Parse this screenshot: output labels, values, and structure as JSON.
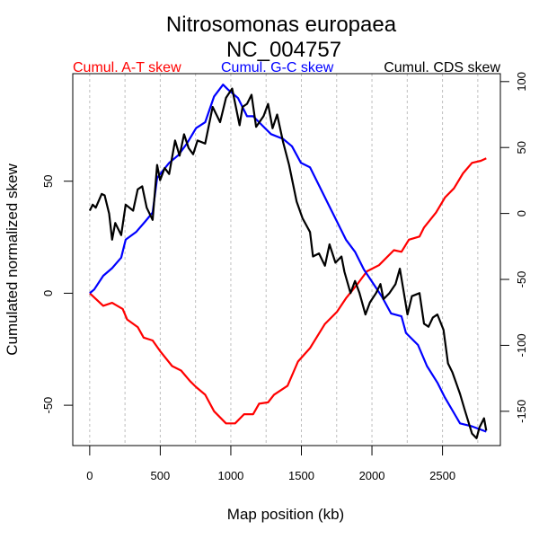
{
  "chart_data": {
    "type": "line",
    "title": "Nitrosomonas europaea",
    "subtitle": "NC_004757",
    "xlabel": "Map position (kb)",
    "ylabel": "Cumulated normalized skew",
    "xlim": [
      -120,
      2910
    ],
    "ylim": [
      -68,
      98
    ],
    "ylim_right": [
      -176,
      106
    ],
    "x_ticks": [
      0,
      500,
      1000,
      1500,
      2000,
      2500
    ],
    "x_tick_labels": [
      "0",
      "500",
      "1000",
      "1500",
      "2000",
      "2500"
    ],
    "y_ticks": [
      -50,
      0,
      50
    ],
    "y_tick_labels": [
      "-50",
      "0",
      "50"
    ],
    "y_right_ticks": [
      -150,
      -100,
      -50,
      0,
      50,
      100
    ],
    "y_right_tick_labels": [
      "-150",
      "-100",
      "-50",
      "0",
      "50",
      "100"
    ],
    "grid": "vertical dashed every 250 kb",
    "gridlines_x": [
      0,
      250,
      500,
      750,
      1000,
      1250,
      1500,
      1750,
      2000,
      2250,
      2500,
      2750
    ],
    "legend_position": "top",
    "series": [
      {
        "name": "Cumul. A-T skew",
        "color": "#ff0000",
        "axis": "left",
        "x": [
          0,
          96,
          159,
          234,
          265,
          340,
          382,
          446,
          499,
          584,
          648,
          711,
          754,
          818,
          881,
          966,
          1030,
          1094,
          1158,
          1200,
          1264,
          1306,
          1402,
          1476,
          1561,
          1667,
          1752,
          1816,
          1901,
          1965,
          2050,
          2156,
          2209,
          2262,
          2337,
          2369,
          2454,
          2517,
          2581,
          2645,
          2709,
          2772,
          2810
        ],
        "y": [
          0,
          -5.6,
          -4.3,
          -7.0,
          -11.7,
          -15.1,
          -19.8,
          -21.1,
          -25.8,
          -32.5,
          -34.5,
          -39.2,
          -41.9,
          -45.3,
          -52.7,
          -58.1,
          -58.1,
          -54.0,
          -54.0,
          -49.3,
          -48.7,
          -45.3,
          -41.3,
          -30.5,
          -24.5,
          -13.7,
          -8.3,
          -2.3,
          4.4,
          9.8,
          12.5,
          19.2,
          18.5,
          23.9,
          25.3,
          29.3,
          36.0,
          42.7,
          46.8,
          53.5,
          58.2,
          59.1,
          60.2
        ]
      },
      {
        "name": "Cumul. G-C skew",
        "color": "#0000ff",
        "axis": "left",
        "x": [
          0,
          32,
          96,
          159,
          223,
          255,
          329,
          393,
          446,
          478,
          563,
          627,
          690,
          754,
          818,
          881,
          945,
          977,
          1051,
          1115,
          1158,
          1221,
          1285,
          1370,
          1433,
          1497,
          1561,
          1625,
          1688,
          1752,
          1816,
          1880,
          1944,
          2008,
          2071,
          2135,
          2209,
          2241,
          2326,
          2390,
          2464,
          2517,
          2624,
          2709,
          2810
        ],
        "y": [
          0,
          1.7,
          7.8,
          11.2,
          15.9,
          23.9,
          27.3,
          32.0,
          36.0,
          51.5,
          58.2,
          61.6,
          66.9,
          73.7,
          76.3,
          87.8,
          93.1,
          91.1,
          87.1,
          79.0,
          79.0,
          75.0,
          71.0,
          68.9,
          65.6,
          58.2,
          56.2,
          48.1,
          40.1,
          32.0,
          23.9,
          18.5,
          10.5,
          4.4,
          -1.6,
          -9.0,
          -10.3,
          -17.7,
          -23.1,
          -32.5,
          -39.9,
          -46.6,
          -58.1,
          -59.4,
          -61.8
        ]
      },
      {
        "name": "Cumul. CDS skew",
        "color": "#000000",
        "axis": "right",
        "x": [
          0,
          21,
          43,
          85,
          106,
          138,
          159,
          181,
          223,
          255,
          308,
          340,
          372,
          404,
          446,
          478,
          499,
          531,
          563,
          605,
          637,
          669,
          701,
          733,
          764,
          818,
          871,
          924,
          966,
          1009,
          1062,
          1083,
          1115,
          1147,
          1179,
          1232,
          1264,
          1296,
          1328,
          1370,
          1413,
          1466,
          1508,
          1561,
          1582,
          1625,
          1667,
          1699,
          1741,
          1784,
          1805,
          1848,
          1880,
          1912,
          1954,
          1986,
          2029,
          2060,
          2082,
          2124,
          2167,
          2198,
          2252,
          2283,
          2337,
          2369,
          2401,
          2432,
          2464,
          2507,
          2539,
          2571,
          2624,
          2656,
          2709,
          2741,
          2762,
          2794,
          2810
        ],
        "y": [
          2.1,
          6.7,
          4.4,
          14.8,
          13.7,
          -0.2,
          -19.9,
          -7.2,
          -16.4,
          6.7,
          2.1,
          18.3,
          20.6,
          4.4,
          -4.9,
          36.8,
          25.2,
          34.5,
          29.9,
          55.3,
          43.8,
          60.0,
          49.5,
          44.9,
          55.3,
          53.0,
          80.8,
          69.2,
          87.7,
          94.7,
          66.9,
          80.8,
          83.1,
          90.0,
          65.7,
          73.8,
          83.1,
          64.6,
          75.0,
          54.2,
          36.8,
          9.0,
          -3.7,
          -14.1,
          -32.6,
          -30.3,
          -39.6,
          -23.4,
          -37.3,
          -32.6,
          -44.2,
          -60.4,
          -51.2,
          -60.4,
          -76.6,
          -67.4,
          -60.4,
          -53.5,
          -65.0,
          -60.4,
          -53.5,
          -41.9,
          -76.6,
          -62.7,
          -60.4,
          -83.6,
          -85.9,
          -78.9,
          -76.6,
          -88.2,
          -113.7,
          -120.6,
          -136.8,
          -148.4,
          -166.9,
          -170.4,
          -162.3,
          -155.3,
          -164.6
        ]
      }
    ]
  }
}
